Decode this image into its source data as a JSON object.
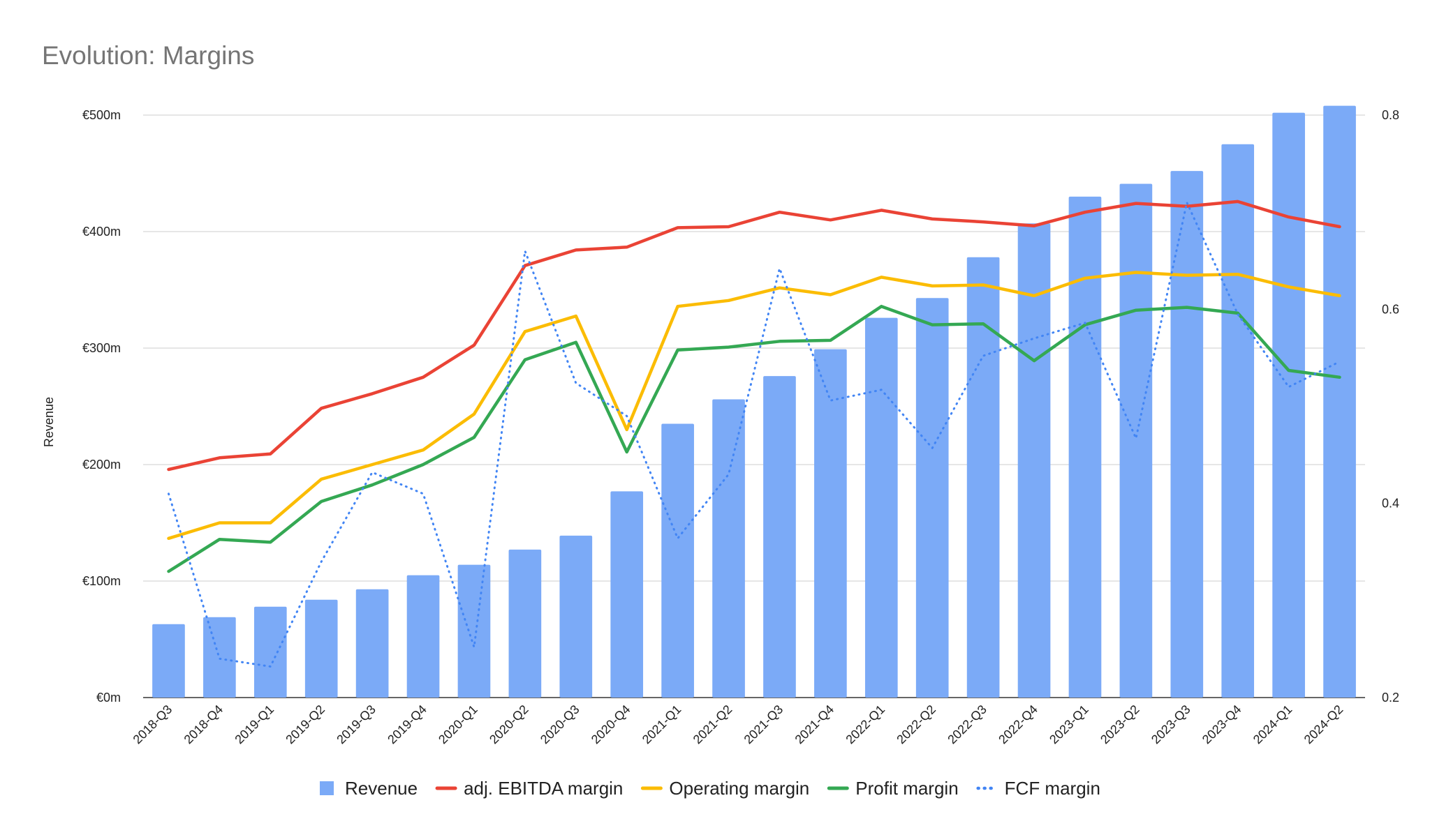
{
  "chart_data": {
    "type": "bar",
    "title": "Evolution: Margins",
    "ylabel": "Revenue",
    "y2label": "",
    "ylim": [
      0,
      500
    ],
    "y_ticks": [
      "€0m",
      "€100m",
      "€200m",
      "€300m",
      "€400m",
      "€500m"
    ],
    "y_tick_values": [
      0,
      100,
      200,
      300,
      400,
      500
    ],
    "y2lim": [
      0.2,
      0.8
    ],
    "y2_ticks": [
      "0.2",
      "0.4",
      "0.6",
      "0.8"
    ],
    "y2_tick_values": [
      0.2,
      0.4,
      0.6,
      0.8
    ],
    "grid": true,
    "legend_position": "bottom",
    "categories": [
      "2018-Q3",
      "2018-Q4",
      "2019-Q1",
      "2019-Q2",
      "2019-Q3",
      "2019-Q4",
      "2020-Q1",
      "2020-Q2",
      "2020-Q3",
      "2020-Q4",
      "2021-Q1",
      "2021-Q2",
      "2021-Q3",
      "2021-Q4",
      "2022-Q1",
      "2022-Q2",
      "2022-Q3",
      "2022-Q4",
      "2023-Q1",
      "2023-Q2",
      "2023-Q3",
      "2023-Q4",
      "2024-Q1",
      "2024-Q2"
    ],
    "series": [
      {
        "name": "Revenue",
        "type": "bar",
        "axis": "left",
        "color": "#7baaf7",
        "values": [
          63,
          69,
          78,
          84,
          93,
          105,
          114,
          127,
          139,
          177,
          235,
          256,
          276,
          299,
          326,
          343,
          378,
          407,
          430,
          441,
          452,
          475,
          502,
          508
        ]
      },
      {
        "name": "adj. EBITDA margin",
        "type": "line",
        "axis": "right",
        "color": "#ea4335",
        "style": "solid",
        "values": [
          0.435,
          0.447,
          0.451,
          0.498,
          0.513,
          0.53,
          0.563,
          0.645,
          0.661,
          0.664,
          0.684,
          0.685,
          0.7,
          0.692,
          0.702,
          0.693,
          0.69,
          0.686,
          0.7,
          0.709,
          0.706,
          0.711,
          0.695,
          0.685
        ]
      },
      {
        "name": "Operating margin",
        "type": "line",
        "axis": "right",
        "color": "#fbbc04",
        "style": "solid",
        "values": [
          0.364,
          0.38,
          0.38,
          0.425,
          0.44,
          0.455,
          0.492,
          0.577,
          0.593,
          0.476,
          0.603,
          0.609,
          0.622,
          0.615,
          0.633,
          0.624,
          0.625,
          0.614,
          0.632,
          0.638,
          0.635,
          0.636,
          0.623,
          0.614
        ]
      },
      {
        "name": "Profit margin",
        "type": "line",
        "axis": "right",
        "color": "#34a853",
        "style": "solid",
        "values": [
          0.33,
          0.363,
          0.36,
          0.402,
          0.419,
          0.44,
          0.468,
          0.548,
          0.566,
          0.453,
          0.558,
          0.561,
          0.567,
          0.568,
          0.603,
          0.584,
          0.585,
          0.547,
          0.584,
          0.599,
          0.602,
          0.596,
          0.537,
          0.53
        ]
      },
      {
        "name": "FCF margin",
        "type": "line",
        "axis": "right",
        "color": "#4285f4",
        "style": "dotted",
        "values": [
          0.41,
          0.24,
          0.232,
          0.34,
          0.432,
          0.41,
          0.252,
          0.66,
          0.524,
          0.49,
          0.364,
          0.43,
          0.642,
          0.506,
          0.517,
          0.457,
          0.552,
          0.57,
          0.586,
          0.467,
          0.71,
          0.595,
          0.52,
          0.546
        ]
      }
    ]
  }
}
